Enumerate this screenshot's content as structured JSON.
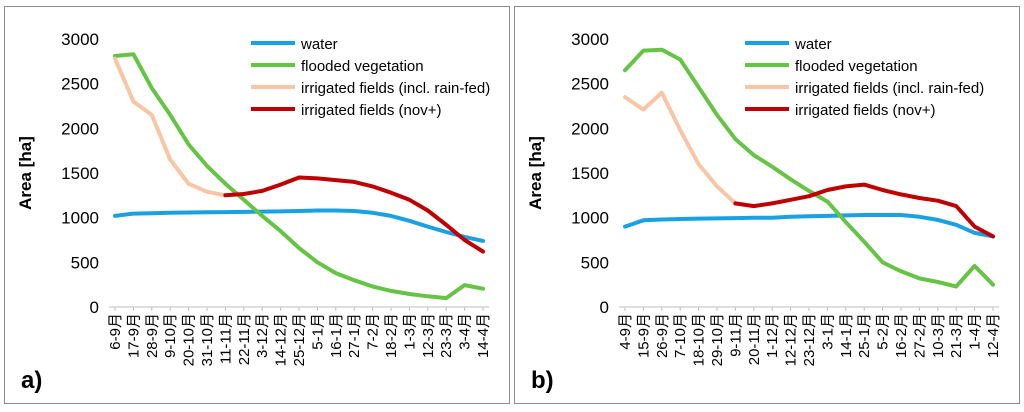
{
  "colors": {
    "water": "#1aa1e3",
    "flooded vegetation": "#66c445",
    "irrigated fields (incl. rain-fed)": "#f8c6a4",
    "irrigated fields (nov+)": "#c00000"
  },
  "chart_data": [
    {
      "type": "line",
      "panel_label": "a)",
      "ylabel": "Area [ha]",
      "xlabel": "",
      "ylim": [
        0,
        3000
      ],
      "yticks": [
        0,
        500,
        1000,
        1500,
        2000,
        2500,
        3000
      ],
      "legend_position": "top-right",
      "grid": false,
      "categories": [
        "6-9月",
        "17-9月",
        "28-9月",
        "9-10月",
        "20-10月",
        "31-10月",
        "11-11月",
        "22-11月",
        "3-12月",
        "14-12月",
        "25-12月",
        "5-1月",
        "16-1月",
        "27-1月",
        "7-2月",
        "18-2月",
        "1-3月",
        "12-3月",
        "23-3月",
        "3-4月",
        "14-4月"
      ],
      "series": [
        {
          "name": "water",
          "values": [
            1020,
            1045,
            1050,
            1055,
            1058,
            1060,
            1062,
            1065,
            1068,
            1070,
            1075,
            1080,
            1080,
            1075,
            1055,
            1020,
            965,
            900,
            840,
            785,
            740
          ]
        },
        {
          "name": "flooded vegetation",
          "values": [
            2810,
            2830,
            2450,
            2150,
            1820,
            1580,
            1380,
            1200,
            1020,
            850,
            660,
            500,
            380,
            300,
            230,
            180,
            145,
            120,
            100,
            245,
            205
          ]
        },
        {
          "name": "irrigated fields (incl. rain-fed)",
          "values": [
            2780,
            2300,
            2150,
            1650,
            1380,
            1290,
            1250,
            null,
            null,
            null,
            null,
            null,
            null,
            null,
            null,
            null,
            null,
            null,
            null,
            null,
            null
          ]
        },
        {
          "name": "irrigated fields (nov+)",
          "values": [
            null,
            null,
            null,
            null,
            null,
            null,
            1250,
            1265,
            1300,
            1370,
            1450,
            1440,
            1420,
            1400,
            1350,
            1280,
            1200,
            1080,
            920,
            750,
            620
          ]
        }
      ]
    },
    {
      "type": "line",
      "panel_label": "b)",
      "ylabel": "Area [ha]",
      "xlabel": "",
      "ylim": [
        0,
        3000
      ],
      "yticks": [
        0,
        500,
        1000,
        1500,
        2000,
        2500,
        3000
      ],
      "legend_position": "top-right",
      "grid": false,
      "categories": [
        "4-9月",
        "15-9月",
        "26-9月",
        "7-10月",
        "18-10月",
        "29-10月",
        "9-11月",
        "20-11月",
        "1-12月",
        "12-12月",
        "23-12月",
        "3-1月",
        "14-1月",
        "25-1月",
        "5-2月",
        "16-2月",
        "27-2月",
        "10-3月",
        "21-3月",
        "1-4月",
        "12-4月"
      ],
      "series": [
        {
          "name": "water",
          "values": [
            900,
            970,
            980,
            985,
            990,
            992,
            995,
            998,
            1000,
            1010,
            1015,
            1020,
            1025,
            1030,
            1030,
            1030,
            1010,
            975,
            920,
            830,
            790
          ]
        },
        {
          "name": "flooded vegetation",
          "values": [
            2650,
            2870,
            2880,
            2770,
            2460,
            2150,
            1880,
            1700,
            1570,
            1430,
            1300,
            1180,
            950,
            730,
            500,
            400,
            320,
            280,
            230,
            460,
            250
          ]
        },
        {
          "name": "irrigated fields (incl. rain-fed)",
          "values": [
            2350,
            2210,
            2400,
            1980,
            1600,
            1350,
            1160,
            null,
            null,
            null,
            null,
            null,
            null,
            null,
            null,
            null,
            null,
            null,
            null,
            null,
            null
          ]
        },
        {
          "name": "irrigated fields (nov+)",
          "values": [
            null,
            null,
            null,
            null,
            null,
            null,
            1160,
            1130,
            1160,
            1200,
            1240,
            1310,
            1350,
            1370,
            1310,
            1260,
            1220,
            1190,
            1130,
            900,
            790
          ]
        }
      ]
    }
  ]
}
